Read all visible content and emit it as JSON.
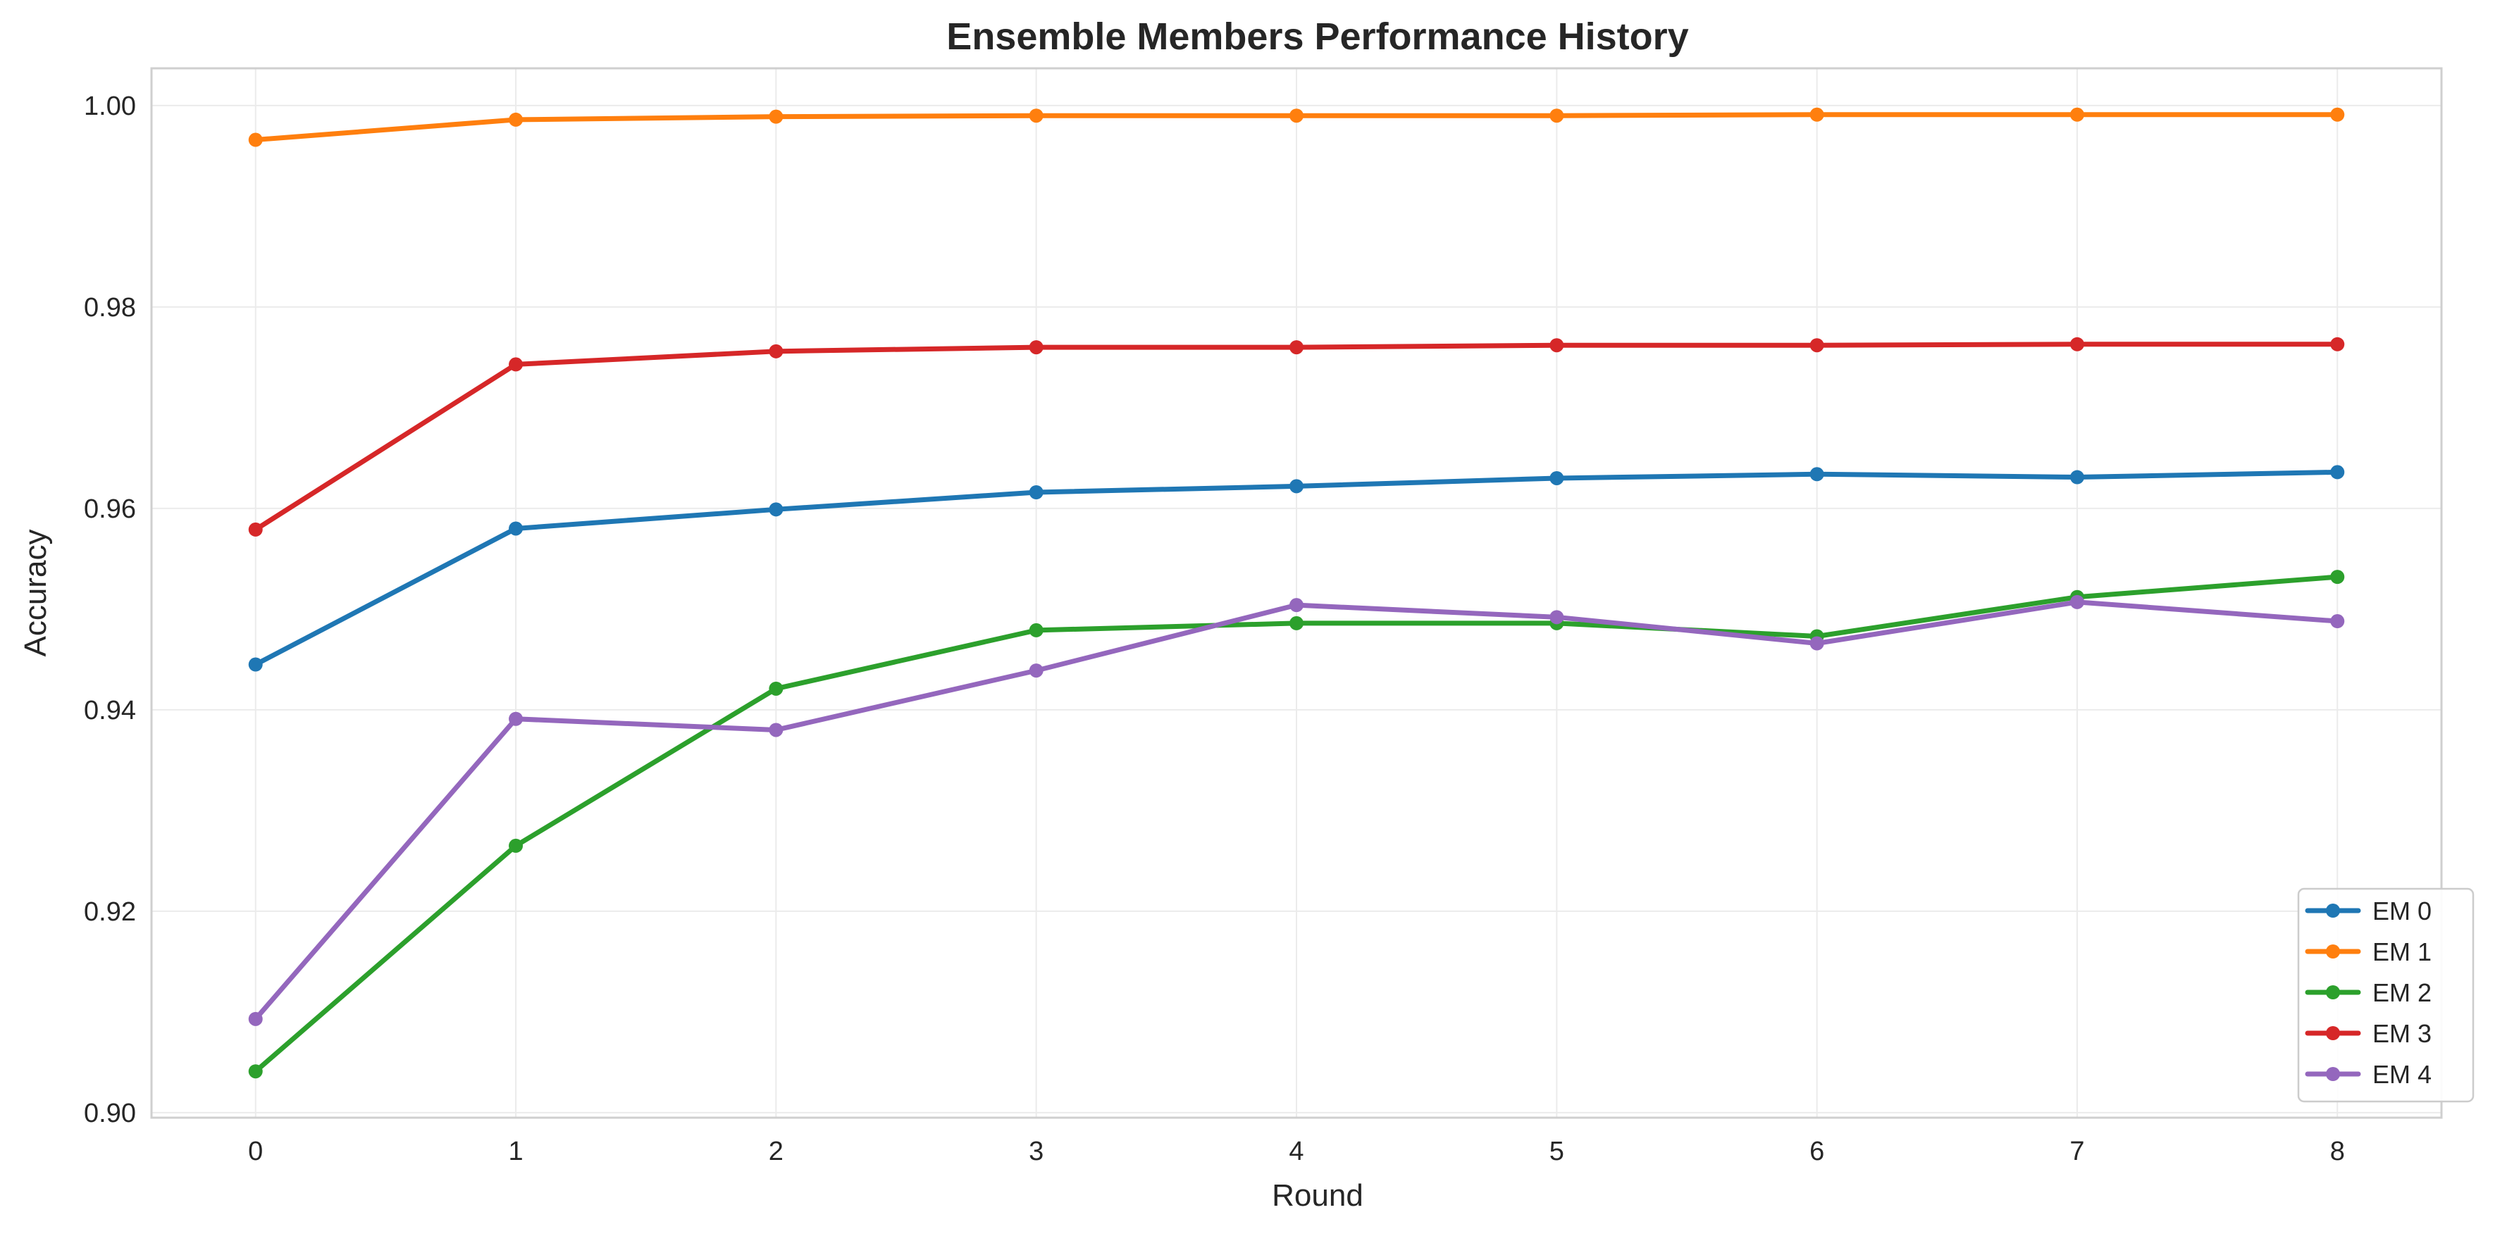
{
  "chart_data": {
    "type": "line",
    "title": "Ensemble Members Performance History",
    "xlabel": "Round",
    "ylabel": "Accuracy",
    "x": [
      0,
      1,
      2,
      3,
      4,
      5,
      6,
      7,
      8
    ],
    "xlim": [
      -0.4,
      8.4
    ],
    "ylim": [
      0.8995,
      1.0037
    ],
    "yticks": [
      0.9,
      0.92,
      0.94,
      0.96,
      0.98,
      1.0
    ],
    "ytick_labels": [
      "0.90",
      "0.92",
      "0.94",
      "0.96",
      "0.98",
      "1.00"
    ],
    "xtick_labels": [
      "0",
      "1",
      "2",
      "3",
      "4",
      "5",
      "6",
      "7",
      "8"
    ],
    "grid": true,
    "legend_position": "bottom-right",
    "series": [
      {
        "name": "EM 0",
        "color": "#1f77b4",
        "values": [
          0.9445,
          0.958,
          0.9599,
          0.9616,
          0.9622,
          0.963,
          0.9634,
          0.9631,
          0.9636
        ]
      },
      {
        "name": "EM 1",
        "color": "#ff7f0e",
        "values": [
          0.9966,
          0.9986,
          0.9989,
          0.999,
          0.999,
          0.999,
          0.9991,
          0.9991,
          0.9991
        ]
      },
      {
        "name": "EM 2",
        "color": "#2ca02c",
        "values": [
          0.9041,
          0.9265,
          0.9421,
          0.9479,
          0.9486,
          0.9486,
          0.9473,
          0.9512,
          0.9532
        ]
      },
      {
        "name": "EM 3",
        "color": "#d62728",
        "values": [
          0.9579,
          0.9743,
          0.9756,
          0.976,
          0.976,
          0.9762,
          0.9762,
          0.9763,
          0.9763
        ]
      },
      {
        "name": "EM 4",
        "color": "#9467bd",
        "values": [
          0.9093,
          0.9391,
          0.938,
          0.9439,
          0.9504,
          0.9492,
          0.9466,
          0.9507,
          0.9488
        ]
      }
    ]
  }
}
